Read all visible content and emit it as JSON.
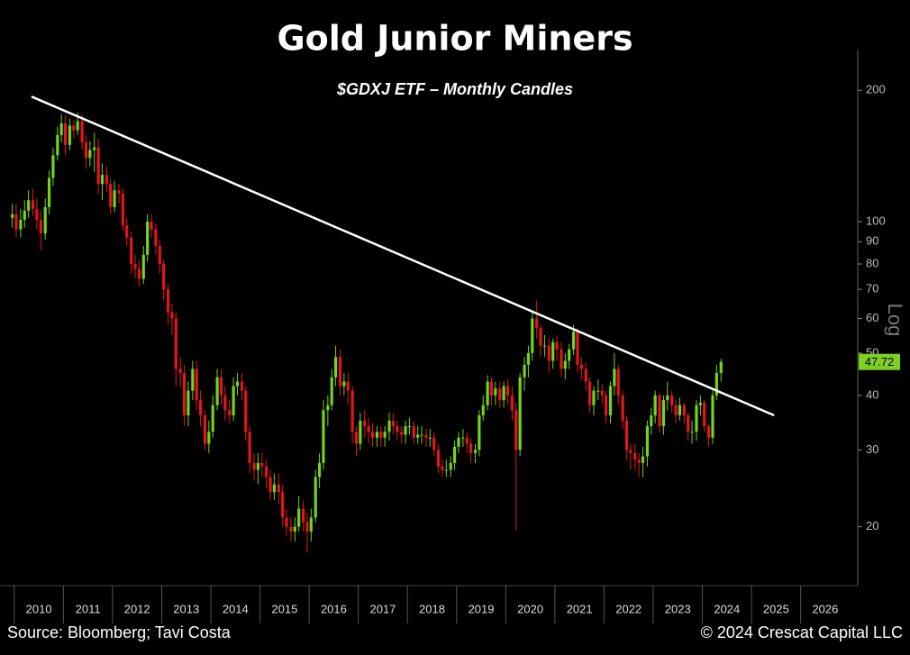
{
  "chart_data": {
    "type": "candlestick",
    "title": "Gold Junior Miners",
    "subtitle": "$GDXJ ETF – Monthly Candles",
    "source": "Source: Bloomberg; Tavi Costa",
    "copyright": "© 2024 Crescat Capital LLC",
    "y_axis_label": "Log",
    "log_scale": true,
    "up_color": "#72d41c",
    "down_color": "#e3161b",
    "last_price_color": "#7fcf24",
    "trendline_color": "#ffffff",
    "trendline": {
      "x": [
        2010.35,
        2025.46
      ],
      "y": [
        193.5,
        36
      ]
    },
    "xlim": [
      2009.71,
      2027.07
    ],
    "xticks": [
      2010,
      2011,
      2012,
      2013,
      2014,
      2015,
      2016,
      2017,
      2018,
      2019,
      2020,
      2021,
      2022,
      2023,
      2024,
      2025,
      2026
    ],
    "ylim": [
      14.8,
      248
    ],
    "yticks": [
      20,
      30,
      40,
      50,
      60,
      70,
      80,
      90,
      100,
      200
    ],
    "x": [
      2009.96,
      2010.04,
      2010.13,
      2010.21,
      2010.29,
      2010.38,
      2010.46,
      2010.54,
      2010.63,
      2010.71,
      2010.79,
      2010.88,
      2010.96,
      2011.04,
      2011.13,
      2011.21,
      2011.29,
      2011.38,
      2011.46,
      2011.54,
      2011.63,
      2011.71,
      2011.79,
      2011.88,
      2011.96,
      2012.04,
      2012.13,
      2012.21,
      2012.29,
      2012.38,
      2012.46,
      2012.54,
      2012.63,
      2012.71,
      2012.79,
      2012.88,
      2012.96,
      2013.04,
      2013.13,
      2013.21,
      2013.29,
      2013.38,
      2013.46,
      2013.54,
      2013.63,
      2013.71,
      2013.79,
      2013.88,
      2013.96,
      2014.04,
      2014.13,
      2014.21,
      2014.29,
      2014.38,
      2014.46,
      2014.54,
      2014.63,
      2014.71,
      2014.79,
      2014.88,
      2014.96,
      2015.04,
      2015.13,
      2015.21,
      2015.29,
      2015.38,
      2015.46,
      2015.54,
      2015.63,
      2015.71,
      2015.79,
      2015.88,
      2015.96,
      2016.04,
      2016.13,
      2016.21,
      2016.29,
      2016.38,
      2016.46,
      2016.54,
      2016.63,
      2016.71,
      2016.79,
      2016.88,
      2016.96,
      2017.04,
      2017.13,
      2017.21,
      2017.29,
      2017.38,
      2017.46,
      2017.54,
      2017.63,
      2017.71,
      2017.79,
      2017.88,
      2017.96,
      2018.04,
      2018.13,
      2018.21,
      2018.29,
      2018.38,
      2018.46,
      2018.54,
      2018.63,
      2018.71,
      2018.79,
      2018.88,
      2018.96,
      2019.04,
      2019.13,
      2019.21,
      2019.29,
      2019.38,
      2019.46,
      2019.54,
      2019.63,
      2019.71,
      2019.79,
      2019.88,
      2019.96,
      2020.04,
      2020.13,
      2020.21,
      2020.29,
      2020.38,
      2020.46,
      2020.54,
      2020.63,
      2020.71,
      2020.79,
      2020.88,
      2020.96,
      2021.04,
      2021.13,
      2021.21,
      2021.29,
      2021.38,
      2021.46,
      2021.54,
      2021.63,
      2021.71,
      2021.79,
      2021.88,
      2021.96,
      2022.04,
      2022.13,
      2022.21,
      2022.29,
      2022.38,
      2022.46,
      2022.54,
      2022.63,
      2022.71,
      2022.79,
      2022.88,
      2022.96,
      2023.04,
      2023.13,
      2023.21,
      2023.29,
      2023.38,
      2023.46,
      2023.54,
      2023.63,
      2023.71,
      2023.79,
      2023.88,
      2023.96,
      2024.04,
      2024.13,
      2024.21,
      2024.29,
      2024.38
    ],
    "open": [
      102,
      104,
      96,
      101,
      106,
      112,
      107,
      101,
      94,
      108,
      126,
      142,
      158,
      168,
      150,
      166,
      162,
      170,
      152,
      140,
      146,
      148,
      122,
      128,
      122,
      108,
      118,
      116,
      98,
      92,
      80,
      78,
      74,
      84,
      100,
      96,
      88,
      80,
      70,
      62,
      60,
      46,
      45,
      36,
      41,
      46,
      39,
      36,
      31,
      33,
      38,
      44,
      40,
      37,
      36,
      42,
      43,
      41,
      33,
      28,
      27,
      28,
      27.5,
      26,
      24,
      25,
      24,
      21,
      20,
      19.5,
      20,
      22,
      20.5,
      19.5,
      21,
      26,
      28,
      37,
      38,
      44,
      49,
      42,
      43,
      41,
      33,
      31,
      35,
      34,
      33,
      32,
      33,
      32,
      33,
      35,
      34,
      33,
      32.5,
      34,
      34,
      32,
      32.5,
      32.5,
      32,
      32,
      30,
      27.5,
      27,
      27,
      28,
      30.5,
      32,
      32,
      31,
      29.5,
      30,
      36,
      38,
      43,
      40,
      41.5,
      39,
      42,
      40,
      37,
      30,
      44,
      47,
      50,
      60,
      57,
      52,
      52,
      48,
      53,
      51,
      46,
      48,
      51,
      56,
      47,
      46,
      43,
      38,
      41,
      41,
      40,
      36,
      42,
      46,
      40,
      35,
      30,
      29.5,
      28.5,
      28,
      29,
      34,
      36,
      40,
      34,
      39,
      40,
      38,
      36,
      38,
      36,
      33,
      33,
      38,
      38.5,
      34,
      32,
      40,
      45
    ],
    "high": [
      110,
      110,
      107,
      112,
      118,
      119,
      113,
      106,
      113,
      131,
      148,
      165,
      176,
      175,
      172,
      171,
      178,
      176,
      158,
      153,
      160,
      155,
      136,
      134,
      126,
      124,
      122,
      119,
      102,
      95,
      84,
      82,
      88,
      104,
      104,
      99,
      91,
      82,
      72,
      65,
      62,
      49,
      47,
      43,
      48,
      48,
      41,
      37,
      35,
      40,
      46,
      46,
      42,
      39,
      44,
      45,
      45,
      42,
      34,
      29.5,
      29.5,
      29.5,
      28.5,
      27,
      26.5,
      26.5,
      25,
      22,
      21,
      21,
      23.5,
      23,
      21.5,
      22,
      27,
      29.5,
      39,
      40,
      46,
      52,
      51,
      45,
      45,
      42,
      34,
      36.5,
      37,
      35.5,
      34.5,
      34,
      34,
      34,
      36.5,
      36.5,
      35,
      34,
      35,
      35.5,
      35,
      34,
      34,
      33.5,
      33.5,
      33,
      31,
      28.5,
      28.5,
      29,
      31.5,
      33,
      33.5,
      33,
      32,
      31,
      37,
      40,
      44.5,
      44,
      43,
      43,
      43,
      43.5,
      42,
      38.5,
      45,
      49,
      52,
      62,
      66,
      58,
      55,
      54,
      54,
      55,
      53,
      50,
      52.5,
      58,
      57,
      49,
      47.5,
      44,
      42,
      43.5,
      42.5,
      41,
      43,
      50,
      47,
      41,
      36,
      31,
      31,
      29.5,
      30.5,
      35,
      37.5,
      41,
      40.5,
      40,
      43,
      41,
      39,
      39.5,
      38.5,
      36.5,
      35,
      39,
      40,
      39,
      34.5,
      41,
      47,
      48.5
    ],
    "low": [
      97,
      92,
      92,
      97,
      102,
      103,
      96,
      86,
      91,
      104,
      121,
      138,
      152,
      142,
      146,
      155,
      158,
      146,
      132,
      134,
      130,
      116,
      112,
      117,
      104,
      105,
      110,
      95,
      88,
      76,
      74,
      71,
      72,
      81,
      92,
      84,
      76,
      66,
      58,
      55,
      42,
      42,
      34,
      34,
      39,
      37,
      34,
      30,
      29.5,
      32,
      37,
      38,
      35,
      34.5,
      35,
      40,
      39,
      31.5,
      26.5,
      25.5,
      25,
      26,
      24.5,
      23,
      23,
      22.5,
      20,
      19,
      18.5,
      18.5,
      19.5,
      19.5,
      17.5,
      18.5,
      20.5,
      24.5,
      27,
      34,
      37,
      42,
      40,
      40,
      38,
      31,
      29,
      30,
      32,
      31,
      30.5,
      30.5,
      30.5,
      30.5,
      31.5,
      32.5,
      31.5,
      31,
      31,
      32.5,
      31,
      31,
      31,
      30.5,
      30.5,
      29,
      26.5,
      26,
      26,
      26,
      27,
      29.5,
      30.5,
      29.5,
      28,
      28,
      29,
      35,
      37,
      38,
      38,
      37.5,
      37.5,
      38,
      35,
      19.6,
      29,
      41,
      44,
      48,
      54,
      49,
      49,
      45,
      46,
      48,
      44,
      43.5,
      46,
      49.5,
      45,
      43.5,
      41,
      36.5,
      36,
      39,
      38,
      34.5,
      34.5,
      40,
      38,
      33.5,
      28.5,
      27,
      27,
      26,
      26,
      27.5,
      32.5,
      34.5,
      33,
      32.5,
      37,
      36.5,
      34.5,
      35,
      34.5,
      31.5,
      31,
      31.5,
      36,
      33,
      30.5,
      31,
      39,
      43
    ],
    "close": [
      104,
      96,
      101,
      106,
      112,
      107,
      101,
      94,
      108,
      126,
      142,
      158,
      168,
      150,
      166,
      162,
      170,
      152,
      140,
      146,
      148,
      122,
      128,
      122,
      108,
      118,
      116,
      98,
      92,
      80,
      78,
      74,
      84,
      100,
      96,
      88,
      80,
      70,
      62,
      60,
      46,
      45,
      36,
      41,
      46,
      39,
      36,
      31,
      33,
      38,
      44,
      40,
      37,
      36,
      42,
      43,
      41,
      33,
      28,
      27,
      28,
      27.5,
      26,
      24,
      25,
      24,
      21,
      20,
      19.5,
      20,
      22,
      20.5,
      19.5,
      21,
      26,
      28,
      37,
      38,
      44,
      49,
      42,
      43,
      41,
      33,
      31,
      35,
      34,
      33,
      32,
      33,
      32,
      33,
      35,
      34,
      33,
      32.5,
      34,
      34,
      32,
      32.5,
      32.5,
      32,
      32,
      30,
      27.5,
      27,
      27,
      28,
      30.5,
      32,
      32,
      31,
      29.5,
      30,
      36,
      38,
      43,
      40,
      41.5,
      39,
      42,
      40,
      37,
      30,
      44,
      47,
      50,
      60,
      57,
      52,
      52,
      48,
      53,
      51,
      46,
      48,
      51,
      56,
      47,
      46,
      43,
      38,
      41,
      41,
      40,
      36,
      42,
      46,
      40,
      35,
      30,
      29.5,
      28.5,
      28,
      29,
      34,
      36,
      40,
      34,
      39,
      40,
      38,
      36,
      38,
      36,
      33,
      33,
      38,
      38.5,
      34,
      32,
      40,
      45,
      47.72
    ]
  }
}
